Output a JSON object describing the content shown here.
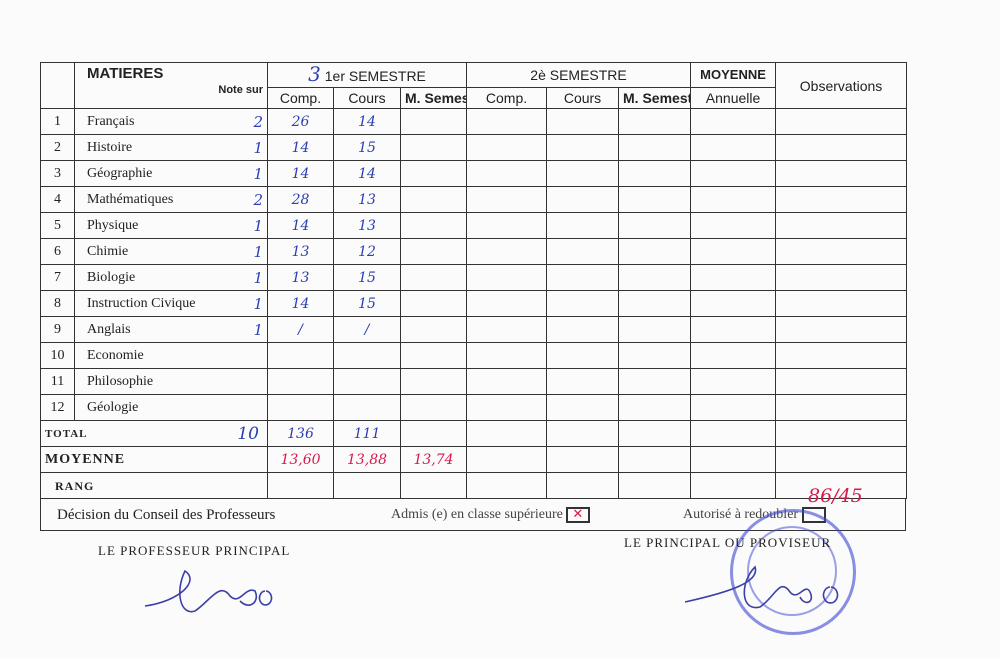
{
  "header": {
    "matieres": "MATIERES",
    "note_sur": "Note sur",
    "semester1": "1er SEMESTRE",
    "semester1_handwritten_number": "3",
    "semester2": "2è SEMESTRE",
    "moyenne": "MOYENNE",
    "annuelle": "Annuelle",
    "observations": "Observations",
    "comp": "Comp.",
    "cours": "Cours",
    "m_semestrielle": "M. Semestrielle"
  },
  "subjects": [
    {
      "n": "1",
      "name": "Français",
      "coef": "2",
      "comp1": "26",
      "cours1": "14"
    },
    {
      "n": "2",
      "name": "Histoire",
      "coef": "1",
      "comp1": "14",
      "cours1": "15"
    },
    {
      "n": "3",
      "name": "Géographie",
      "coef": "1",
      "comp1": "14",
      "cours1": "14"
    },
    {
      "n": "4",
      "name": "Mathématiques",
      "coef": "2",
      "comp1": "28",
      "cours1": "13"
    },
    {
      "n": "5",
      "name": "Physique",
      "coef": "1",
      "comp1": "14",
      "cours1": "13"
    },
    {
      "n": "6",
      "name": "Chimie",
      "coef": "1",
      "comp1": "13",
      "cours1": "12"
    },
    {
      "n": "7",
      "name": "Biologie",
      "coef": "1",
      "comp1": "13",
      "cours1": "15"
    },
    {
      "n": "8",
      "name": "Instruction Civique",
      "coef": "1",
      "comp1": "14",
      "cours1": "15"
    },
    {
      "n": "9",
      "name": "Anglais",
      "coef": "1",
      "comp1": "/",
      "cours1": "/"
    },
    {
      "n": "10",
      "name": "Economie",
      "coef": "",
      "comp1": "",
      "cours1": ""
    },
    {
      "n": "11",
      "name": "Philosophie",
      "coef": "",
      "comp1": "",
      "cours1": ""
    },
    {
      "n": "12",
      "name": "Géologie",
      "coef": "",
      "comp1": "",
      "cours1": ""
    }
  ],
  "totals": {
    "total_label": "TOTAL",
    "total_coef": "10",
    "total_comp": "136",
    "total_cours": "111",
    "moyenne_label": "MOYENNE",
    "moyenne_comp": "13,60",
    "moyenne_cours": "13,88",
    "moyenne_semestrielle": "13,74",
    "rang_label": "RANG"
  },
  "decision": {
    "label": "Décision du Conseil des Professeurs",
    "admis": "Admis (e) en classe supérieure",
    "admis_checked": true,
    "redouble": "Autorisé à redoubler",
    "redouble_checked": false
  },
  "signatures": {
    "professeur": "LE PROFESSEUR PRINCIPAL",
    "principal": "LE PRINCIPAL OU PROVISEUR",
    "stamp_ref": "86/45"
  },
  "colors": {
    "ink_blue": "#2b3fb0",
    "ink_red": "#d8184a",
    "stamp": "#3c46d2"
  }
}
